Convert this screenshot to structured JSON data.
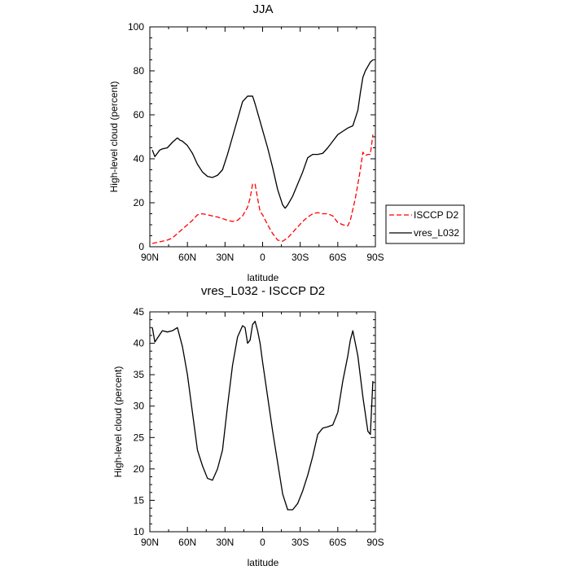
{
  "chart_data": [
    {
      "type": "line",
      "title": "JJA",
      "xlabel": "latitude",
      "ylabel": "High-level cloud (percent)",
      "xlim": [
        90,
        -90
      ],
      "ylim": [
        0,
        100
      ],
      "xticks": [
        90,
        60,
        30,
        0,
        -30,
        -60,
        -90
      ],
      "xtick_labels": [
        "90N",
        "60N",
        "30N",
        "0",
        "30S",
        "60S",
        "90S"
      ],
      "yticks": [
        0,
        20,
        40,
        60,
        80,
        100
      ],
      "ytick_labels": [
        "0",
        "20",
        "40",
        "60",
        "80",
        "100"
      ],
      "legend_position": "right",
      "series": [
        {
          "name": "ISCCP D2",
          "color": "#ff0000",
          "dash": "dashed",
          "x": [
            88,
            84,
            80,
            76,
            72,
            68,
            64,
            60,
            56,
            52,
            48,
            44,
            40,
            36,
            32,
            28,
            24,
            20,
            16,
            12,
            10,
            8,
            6,
            4,
            2,
            0,
            -4,
            -8,
            -12,
            -16,
            -20,
            -24,
            -28,
            -32,
            -36,
            -40,
            -44,
            -48,
            -52,
            -56,
            -60,
            -64,
            -68,
            -70,
            -74,
            -78,
            -80,
            -82,
            -84,
            -86,
            -88
          ],
          "y": [
            1.5,
            2,
            2.5,
            3,
            4,
            6,
            8,
            10,
            12,
            14.5,
            15,
            14.5,
            14,
            13.5,
            12.8,
            12,
            11.5,
            12,
            14,
            18,
            22,
            28.5,
            28.5,
            22,
            16,
            14.5,
            10,
            6,
            3,
            2.5,
            4,
            6.5,
            9,
            11.5,
            13.5,
            15,
            15.5,
            15,
            15,
            14,
            11,
            10,
            9.5,
            12,
            22,
            35,
            43,
            41.5,
            42,
            42,
            51
          ]
        },
        {
          "name": "vres_L032",
          "color": "#000000",
          "dash": "solid",
          "x": [
            88,
            86,
            84,
            82,
            80,
            76,
            72,
            68,
            66,
            64,
            60,
            56,
            52,
            48,
            44,
            40,
            36,
            32,
            28,
            24,
            20,
            16,
            12,
            10,
            8,
            6,
            4,
            2,
            0,
            -4,
            -8,
            -12,
            -16,
            -18,
            -20,
            -24,
            -28,
            -32,
            -36,
            -40,
            -44,
            -48,
            -52,
            -56,
            -60,
            -64,
            -68,
            -72,
            -76,
            -78,
            -80,
            -82,
            -84,
            -86,
            -88
          ],
          "y": [
            44,
            41,
            42.5,
            44,
            44.5,
            45,
            47.5,
            49.5,
            48.5,
            48,
            46,
            42.5,
            37.5,
            34,
            32,
            31.5,
            32.5,
            35,
            42,
            50,
            58,
            66,
            68.5,
            68.5,
            68.5,
            65,
            61,
            57,
            53,
            45,
            36,
            26,
            19,
            17.5,
            19,
            23,
            28.5,
            34,
            40.5,
            42,
            42,
            42.5,
            45,
            48,
            51,
            52.5,
            54,
            55,
            62,
            70,
            77,
            80,
            82,
            84,
            85
          ]
        }
      ]
    },
    {
      "type": "line",
      "title": "vres_L032 - ISCCP D2",
      "xlabel": "latitude",
      "ylabel": "High-level cloud (percent)",
      "xlim": [
        90,
        -90
      ],
      "ylim": [
        10,
        45
      ],
      "xticks": [
        90,
        60,
        30,
        0,
        -30,
        -60,
        -90
      ],
      "xtick_labels": [
        "90N",
        "60N",
        "30N",
        "0",
        "30S",
        "60S",
        "90S"
      ],
      "yticks": [
        10,
        15,
        20,
        25,
        30,
        35,
        40,
        45
      ],
      "ytick_labels": [
        "10",
        "15",
        "20",
        "25",
        "30",
        "35",
        "40",
        "45"
      ],
      "series": [
        {
          "color": "#000000",
          "dash": "solid",
          "x": [
            88,
            86,
            84,
            80,
            76,
            72,
            68,
            64,
            60,
            56,
            52,
            48,
            44,
            40,
            36,
            32,
            28,
            24,
            20,
            16,
            14,
            12,
            10,
            8,
            6,
            4,
            2,
            0,
            -4,
            -8,
            -12,
            -16,
            -20,
            -24,
            -28,
            -32,
            -36,
            -40,
            -44,
            -48,
            -52,
            -56,
            -60,
            -64,
            -68,
            -70,
            -72,
            -76,
            -80,
            -84,
            -86,
            -88
          ],
          "y": [
            42.5,
            40.2,
            40.8,
            42,
            41.8,
            42,
            42.5,
            39.5,
            35,
            29,
            23,
            20.5,
            18.5,
            18.2,
            20,
            23,
            30,
            36.5,
            41,
            42.8,
            42.5,
            40,
            40.5,
            43,
            43.5,
            42,
            40,
            37,
            31.5,
            26,
            21,
            16,
            13.5,
            13.5,
            14.5,
            16.5,
            19,
            22,
            25.5,
            26.5,
            26.7,
            27,
            29,
            34,
            38,
            40.5,
            42,
            38,
            31.5,
            26,
            25.5,
            34
          ]
        }
      ]
    }
  ]
}
